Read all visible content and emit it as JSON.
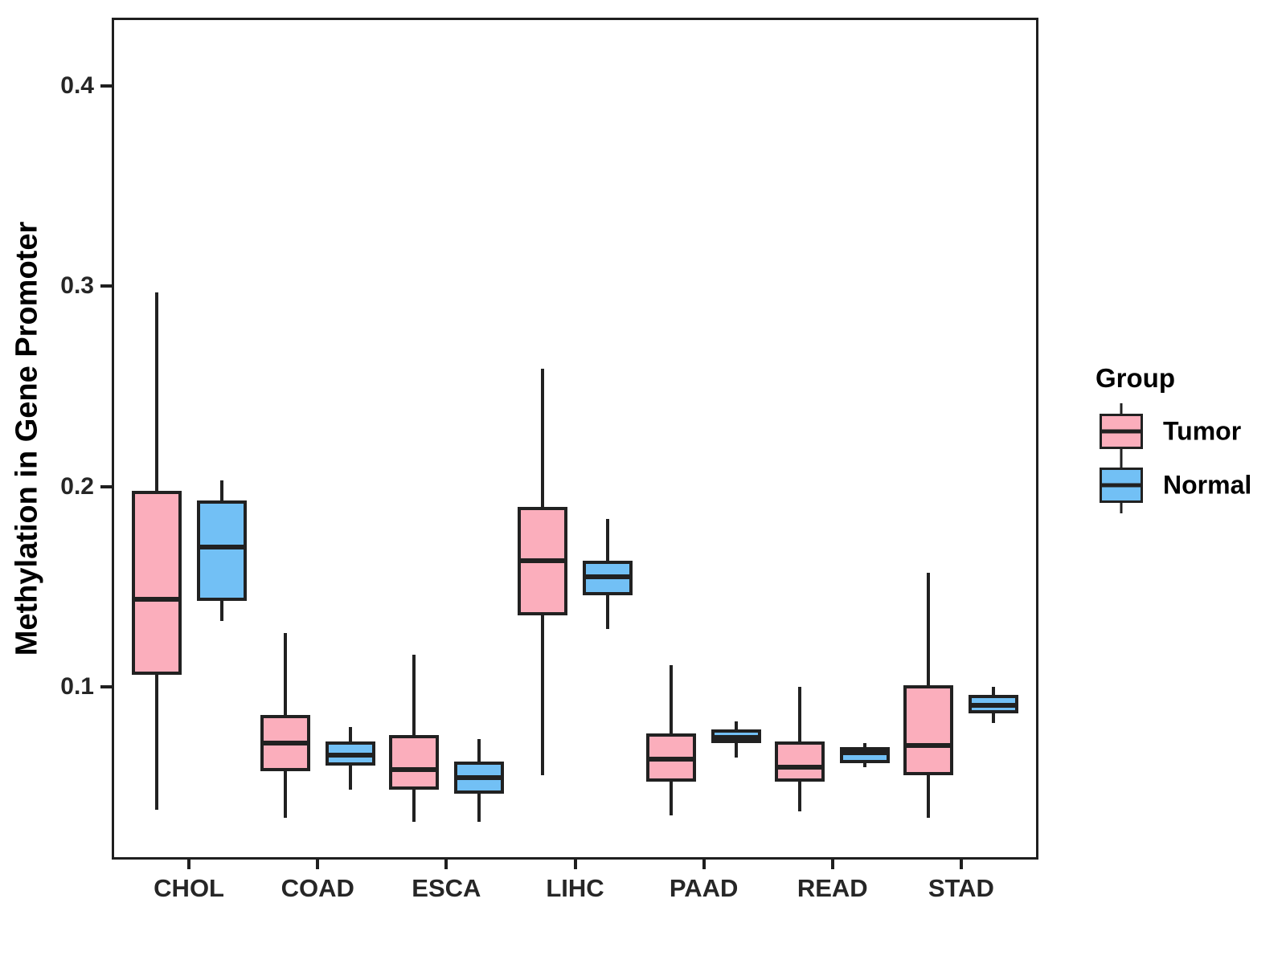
{
  "y_axis": {
    "title": "Methylation in Gene Promoter",
    "tick_labels": [
      "0.1",
      "0.2",
      "0.3",
      "0.4"
    ],
    "tick_values": [
      0.1,
      0.2,
      0.3,
      0.4
    ]
  },
  "x_axis": {
    "categories": [
      "CHOL",
      "COAD",
      "ESCA",
      "LIHC",
      "PAAD",
      "READ",
      "STAD"
    ]
  },
  "legend": {
    "title": "Group",
    "entries": [
      {
        "label": "Tumor",
        "fill": "#FBAEBC"
      },
      {
        "label": "Normal",
        "fill": "#72C0F5"
      }
    ]
  },
  "colors": {
    "tumor_fill": "#FBAEBC",
    "normal_fill": "#72C0F5",
    "line": "#212121",
    "background": "#FFFFFF"
  },
  "chart_data": {
    "type": "boxplot",
    "title": "",
    "xlabel": "",
    "ylabel": "Methylation in Gene Promoter",
    "ylim": [
      0.014,
      0.434
    ],
    "yticks": [
      0.1,
      0.2,
      0.3,
      0.4
    ],
    "grid": false,
    "legend_position": "right",
    "categories": [
      "CHOL",
      "COAD",
      "ESCA",
      "LIHC",
      "PAAD",
      "READ",
      "STAD"
    ],
    "series": [
      {
        "name": "Tumor",
        "fill": "#FBAEBC",
        "boxes": [
          {
            "category": "CHOL",
            "whisker_low": 0.039,
            "q1": 0.106,
            "median": 0.144,
            "q3": 0.198,
            "whisker_high": 0.297
          },
          {
            "category": "COAD",
            "whisker_low": 0.035,
            "q1": 0.058,
            "median": 0.072,
            "q3": 0.086,
            "whisker_high": 0.127
          },
          {
            "category": "ESCA",
            "whisker_low": 0.033,
            "q1": 0.049,
            "median": 0.059,
            "q3": 0.076,
            "whisker_high": 0.116
          },
          {
            "category": "LIHC",
            "whisker_low": 0.056,
            "q1": 0.136,
            "median": 0.163,
            "q3": 0.19,
            "whisker_high": 0.259
          },
          {
            "category": "PAAD",
            "whisker_low": 0.036,
            "q1": 0.053,
            "median": 0.064,
            "q3": 0.077,
            "whisker_high": 0.111
          },
          {
            "category": "READ",
            "whisker_low": 0.038,
            "q1": 0.053,
            "median": 0.06,
            "q3": 0.073,
            "whisker_high": 0.1
          },
          {
            "category": "STAD",
            "whisker_low": 0.035,
            "q1": 0.056,
            "median": 0.071,
            "q3": 0.101,
            "whisker_high": 0.157
          }
        ]
      },
      {
        "name": "Normal",
        "fill": "#72C0F5",
        "boxes": [
          {
            "category": "CHOL",
            "whisker_low": 0.133,
            "q1": 0.143,
            "median": 0.17,
            "q3": 0.193,
            "whisker_high": 0.203
          },
          {
            "category": "COAD",
            "whisker_low": 0.049,
            "q1": 0.061,
            "median": 0.066,
            "q3": 0.073,
            "whisker_high": 0.08
          },
          {
            "category": "ESCA",
            "whisker_low": 0.033,
            "q1": 0.047,
            "median": 0.055,
            "q3": 0.063,
            "whisker_high": 0.074
          },
          {
            "category": "LIHC",
            "whisker_low": 0.129,
            "q1": 0.146,
            "median": 0.155,
            "q3": 0.163,
            "whisker_high": 0.184
          },
          {
            "category": "PAAD",
            "whisker_low": 0.065,
            "q1": 0.072,
            "median": 0.0745,
            "q3": 0.079,
            "whisker_high": 0.083
          },
          {
            "category": "READ",
            "whisker_low": 0.06,
            "q1": 0.062,
            "median": 0.069,
            "q3": 0.07,
            "whisker_high": 0.072
          },
          {
            "category": "STAD",
            "whisker_low": 0.082,
            "q1": 0.087,
            "median": 0.091,
            "q3": 0.096,
            "whisker_high": 0.1
          }
        ]
      }
    ]
  }
}
